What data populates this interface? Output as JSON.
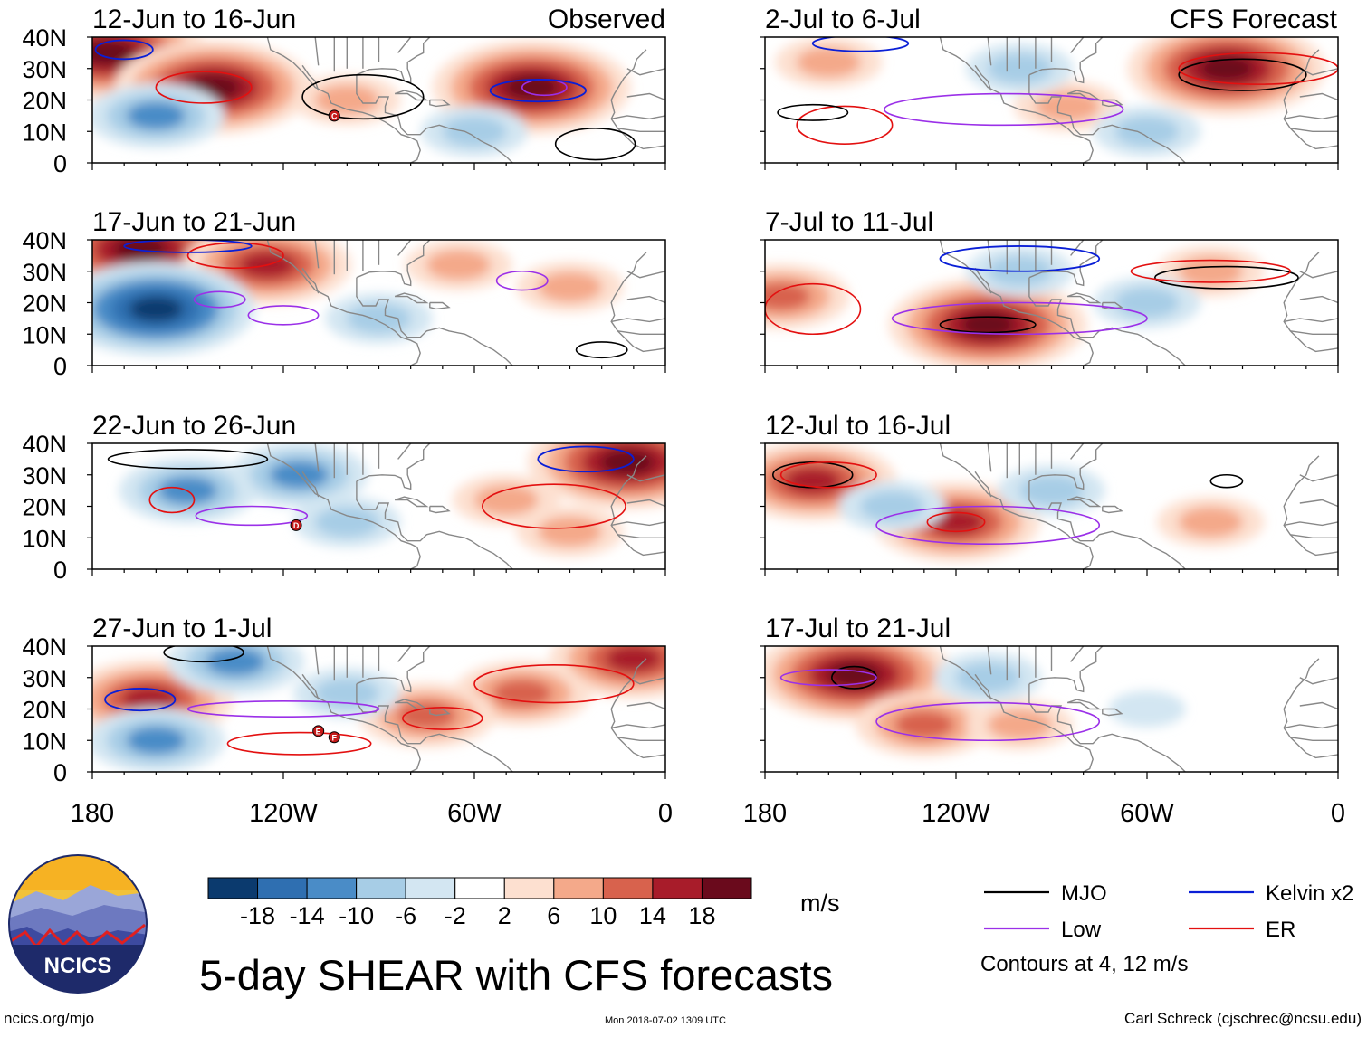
{
  "figure": {
    "title": "5-day SHEAR with CFS forecasts",
    "observed_label": "Observed",
    "forecast_label": "CFS Forecast",
    "logo_text": "NCICS",
    "website": "ncics.org/mjo",
    "timestamp": "Mon 2018-07-02 1309 UTC",
    "author": "Carl Schreck (cjschrec@ncsu.edu)"
  },
  "colors": {
    "strong_neg": "#0b3a6e",
    "neg": "#2f6fb1",
    "mid_neg": "#4a8cc7",
    "light_neg": "#a7cde6",
    "very_light_neg": "#d3e6f2",
    "neutral": "#ffffff",
    "very_light_pos": "#fde0d0",
    "light_pos": "#f4a98a",
    "mid_pos": "#d8624d",
    "pos": "#a81c2a",
    "strong_pos": "#6a0a1c",
    "mjo": "#000000",
    "low": "#9b30e8",
    "kelvin": "#0a1fd6",
    "er": "#e31010",
    "land": "#888888"
  },
  "chart_data": {
    "type": "heatmap",
    "variable": "vertical wind shear anomaly",
    "units": "m/s",
    "xlim": [
      -180,
      0
    ],
    "ylim": [
      0,
      40
    ],
    "x_ticks": [
      "180",
      "120W",
      "60W",
      "0"
    ],
    "y_ticks": [
      "40N",
      "30N",
      "20N",
      "10N",
      "0"
    ],
    "panels": [
      {
        "title": "12-Jun to 16-Jun",
        "column": "Observed",
        "storms": [
          {
            "label": "C",
            "lon": -104,
            "lat": 15
          }
        ],
        "blobs": [
          {
            "lon": -175,
            "lat": 35,
            "v": 18
          },
          {
            "lon": -142,
            "lat": 24,
            "v": 18
          },
          {
            "lon": -100,
            "lat": 20,
            "v": 6
          },
          {
            "lon": -42,
            "lat": 24,
            "v": 18
          },
          {
            "lon": -160,
            "lat": 15,
            "v": -10
          },
          {
            "lon": -60,
            "lat": 10,
            "v": -6
          }
        ],
        "contours": [
          {
            "wave": "MJO",
            "lon": -95,
            "lat": 21,
            "w": 38,
            "h": 14
          },
          {
            "wave": "MJO",
            "lon": -22,
            "lat": 6,
            "w": 25,
            "h": 10
          },
          {
            "wave": "ER",
            "lon": -145,
            "lat": 24,
            "w": 30,
            "h": 10
          },
          {
            "wave": "Kelvin",
            "lon": -170,
            "lat": 36,
            "w": 18,
            "h": 6
          },
          {
            "wave": "Low",
            "lon": -38,
            "lat": 24,
            "w": 14,
            "h": 5
          },
          {
            "wave": "Kelvin",
            "lon": -40,
            "lat": 23,
            "w": 30,
            "h": 7
          }
        ]
      },
      {
        "title": "17-Jun to 21-Jun",
        "column": "Observed",
        "storms": [],
        "blobs": [
          {
            "lon": -165,
            "lat": 37,
            "v": 18
          },
          {
            "lon": -125,
            "lat": 32,
            "v": 14
          },
          {
            "lon": -160,
            "lat": 18,
            "v": -18
          },
          {
            "lon": -65,
            "lat": 32,
            "v": 6
          },
          {
            "lon": -30,
            "lat": 25,
            "v": 6
          },
          {
            "lon": -90,
            "lat": 15,
            "v": -6
          }
        ],
        "contours": [
          {
            "wave": "MJO",
            "lon": -20,
            "lat": 5,
            "w": 16,
            "h": 5
          },
          {
            "wave": "Low",
            "lon": -140,
            "lat": 21,
            "w": 16,
            "h": 5
          },
          {
            "wave": "Low",
            "lon": -120,
            "lat": 16,
            "w": 22,
            "h": 6
          },
          {
            "wave": "ER",
            "lon": -135,
            "lat": 35,
            "w": 30,
            "h": 8
          },
          {
            "wave": "Low",
            "lon": -45,
            "lat": 27,
            "w": 16,
            "h": 6
          },
          {
            "wave": "Kelvin",
            "lon": -150,
            "lat": 38,
            "w": 40,
            "h": 4
          }
        ]
      },
      {
        "title": "22-Jun to 26-Jun",
        "column": "Observed",
        "storms": [
          {
            "label": "D",
            "lon": -116,
            "lat": 14
          }
        ],
        "blobs": [
          {
            "lon": -12,
            "lat": 34,
            "v": 18
          },
          {
            "lon": -50,
            "lat": 22,
            "v": 6
          },
          {
            "lon": -150,
            "lat": 25,
            "v": -10
          },
          {
            "lon": -115,
            "lat": 30,
            "v": -10
          },
          {
            "lon": -100,
            "lat": 15,
            "v": -6
          },
          {
            "lon": -30,
            "lat": 12,
            "v": 6
          }
        ],
        "contours": [
          {
            "wave": "ER",
            "lon": -35,
            "lat": 20,
            "w": 45,
            "h": 14
          },
          {
            "wave": "Low",
            "lon": -130,
            "lat": 17,
            "w": 35,
            "h": 6
          },
          {
            "wave": "ER",
            "lon": -155,
            "lat": 22,
            "w": 14,
            "h": 8
          },
          {
            "wave": "MJO",
            "lon": -150,
            "lat": 35,
            "w": 50,
            "h": 6
          },
          {
            "wave": "Kelvin",
            "lon": -25,
            "lat": 35,
            "w": 30,
            "h": 8
          }
        ]
      },
      {
        "title": "27-Jun to 1-Jul",
        "column": "Observed",
        "storms": [
          {
            "label": "E",
            "lon": -109,
            "lat": 13
          },
          {
            "label": "F",
            "lon": -104,
            "lat": 11
          }
        ],
        "blobs": [
          {
            "lon": -162,
            "lat": 23,
            "v": 14
          },
          {
            "lon": -10,
            "lat": 36,
            "v": 14
          },
          {
            "lon": -45,
            "lat": 25,
            "v": 10
          },
          {
            "lon": -75,
            "lat": 18,
            "v": 10
          },
          {
            "lon": -135,
            "lat": 35,
            "v": -10
          },
          {
            "lon": -100,
            "lat": 25,
            "v": -6
          },
          {
            "lon": -160,
            "lat": 10,
            "v": -10
          }
        ],
        "contours": [
          {
            "wave": "ER",
            "lon": -115,
            "lat": 9,
            "w": 45,
            "h": 7
          },
          {
            "wave": "ER",
            "lon": -70,
            "lat": 17,
            "w": 25,
            "h": 7
          },
          {
            "wave": "Low",
            "lon": -120,
            "lat": 20,
            "w": 60,
            "h": 5
          },
          {
            "wave": "ER",
            "lon": -35,
            "lat": 28,
            "w": 50,
            "h": 12
          },
          {
            "wave": "MJO",
            "lon": -145,
            "lat": 38,
            "w": 25,
            "h": 6
          },
          {
            "wave": "Kelvin",
            "lon": -165,
            "lat": 23,
            "w": 22,
            "h": 7
          }
        ]
      },
      {
        "title": "2-Jul to 6-Jul",
        "column": "CFS Forecast",
        "storms": [],
        "blobs": [
          {
            "lon": -35,
            "lat": 30,
            "v": 18
          },
          {
            "lon": -85,
            "lat": 18,
            "v": 6
          },
          {
            "lon": -160,
            "lat": 32,
            "v": 6
          },
          {
            "lon": -100,
            "lat": 30,
            "v": -6
          },
          {
            "lon": -60,
            "lat": 10,
            "v": -6
          }
        ],
        "contours": [
          {
            "wave": "MJO",
            "lon": -30,
            "lat": 28,
            "w": 40,
            "h": 10
          },
          {
            "wave": "ER",
            "lon": -25,
            "lat": 30,
            "w": 50,
            "h": 10
          },
          {
            "wave": "Low",
            "lon": -105,
            "lat": 17,
            "w": 75,
            "h": 10
          },
          {
            "wave": "ER",
            "lon": -155,
            "lat": 12,
            "w": 30,
            "h": 12
          },
          {
            "wave": "MJO",
            "lon": -165,
            "lat": 16,
            "w": 22,
            "h": 5
          },
          {
            "wave": "Kelvin",
            "lon": -150,
            "lat": 38,
            "w": 30,
            "h": 5
          }
        ]
      },
      {
        "title": "7-Jul to 11-Jul",
        "column": "CFS Forecast",
        "storms": [],
        "blobs": [
          {
            "lon": -110,
            "lat": 13,
            "v": 18
          },
          {
            "lon": -175,
            "lat": 22,
            "v": 10
          },
          {
            "lon": -40,
            "lat": 30,
            "v": 6
          },
          {
            "lon": -100,
            "lat": 30,
            "v": -6
          },
          {
            "lon": -60,
            "lat": 20,
            "v": -6
          }
        ],
        "contours": [
          {
            "wave": "MJO",
            "lon": -110,
            "lat": 13,
            "w": 30,
            "h": 5
          },
          {
            "wave": "Low",
            "lon": -100,
            "lat": 15,
            "w": 80,
            "h": 10
          },
          {
            "wave": "Kelvin",
            "lon": -100,
            "lat": 34,
            "w": 50,
            "h": 8
          },
          {
            "wave": "MJO",
            "lon": -35,
            "lat": 28,
            "w": 45,
            "h": 7
          },
          {
            "wave": "ER",
            "lon": -165,
            "lat": 18,
            "w": 30,
            "h": 16
          },
          {
            "wave": "ER",
            "lon": -40,
            "lat": 30,
            "w": 50,
            "h": 7
          }
        ]
      },
      {
        "title": "12-Jul to 16-Jul",
        "column": "CFS Forecast",
        "storms": [],
        "blobs": [
          {
            "lon": -165,
            "lat": 28,
            "v": 14
          },
          {
            "lon": -120,
            "lat": 15,
            "v": 14
          },
          {
            "lon": -140,
            "lat": 20,
            "v": -6
          },
          {
            "lon": -90,
            "lat": 25,
            "v": -6
          },
          {
            "lon": -40,
            "lat": 15,
            "v": 6
          }
        ],
        "contours": [
          {
            "wave": "Low",
            "lon": -110,
            "lat": 14,
            "w": 70,
            "h": 12
          },
          {
            "wave": "ER",
            "lon": -120,
            "lat": 15,
            "w": 18,
            "h": 6
          },
          {
            "wave": "MJO",
            "lon": -165,
            "lat": 30,
            "w": 25,
            "h": 8
          },
          {
            "wave": "MJO",
            "lon": -35,
            "lat": 28,
            "w": 10,
            "h": 4
          },
          {
            "wave": "ER",
            "lon": -160,
            "lat": 30,
            "w": 30,
            "h": 8
          }
        ]
      },
      {
        "title": "17-Jul to 21-Jul",
        "column": "CFS Forecast",
        "storms": [],
        "blobs": [
          {
            "lon": -152,
            "lat": 31,
            "v": 18
          },
          {
            "lon": -130,
            "lat": 15,
            "v": 10
          },
          {
            "lon": -100,
            "lat": 15,
            "v": 6
          },
          {
            "lon": -110,
            "lat": 30,
            "v": -6
          },
          {
            "lon": -60,
            "lat": 20,
            "v": -2
          }
        ],
        "contours": [
          {
            "wave": "MJO",
            "lon": -152,
            "lat": 30,
            "w": 14,
            "h": 7
          },
          {
            "wave": "Low",
            "lon": -110,
            "lat": 16,
            "w": 70,
            "h": 12
          },
          {
            "wave": "Low",
            "lon": -160,
            "lat": 30,
            "w": 30,
            "h": 5
          }
        ]
      }
    ],
    "colorbar": {
      "label": "m/s",
      "ticks": [
        "-18",
        "-14",
        "-10",
        "-6",
        "-2",
        "2",
        "6",
        "10",
        "14",
        "18"
      ]
    },
    "legend": [
      {
        "name": "MJO",
        "color": "#000000"
      },
      {
        "name": "Kelvin x2",
        "color": "#0a1fd6"
      },
      {
        "name": "Low",
        "color": "#9b30e8"
      },
      {
        "name": "ER",
        "color": "#e31010"
      }
    ],
    "contour_note": "Contours at 4, 12 m/s"
  }
}
